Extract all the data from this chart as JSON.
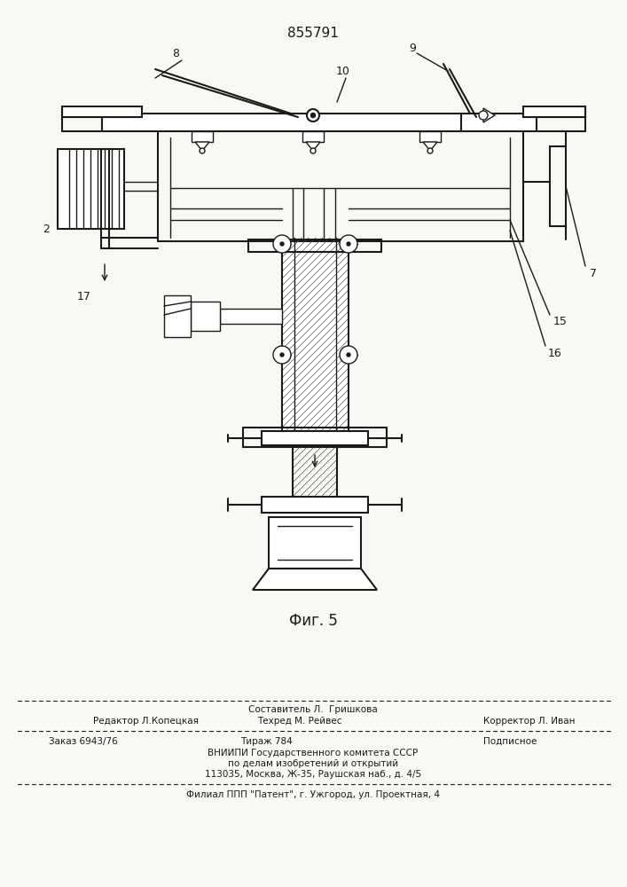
{
  "patent_number": "855791",
  "fig_label": "Фиг. 5",
  "background_color": "#f8f8f5",
  "line_color": "#1a1a1a",
  "footer": {
    "line1_center_above": "Составитель Л.  Гришкова",
    "line1_left": "Редактор Л.Копецкая",
    "line1_center": "Техред М. Рейвес",
    "line1_right": "Корректор Л. Иван",
    "line2_left": "Заказ 6943/76",
    "line2_center": "Тираж 784",
    "line2_right": "Подписное",
    "line3": "ВНИИПИ Государственного комитета СССР",
    "line4": "по делам изобретений и открытий",
    "line5": "113035, Москва, Ж-35, Раушская наб., д. 4/5",
    "line6": "Филиал ППП \"Патент\", г. Ужгород, ул. Проектная, 4"
  }
}
